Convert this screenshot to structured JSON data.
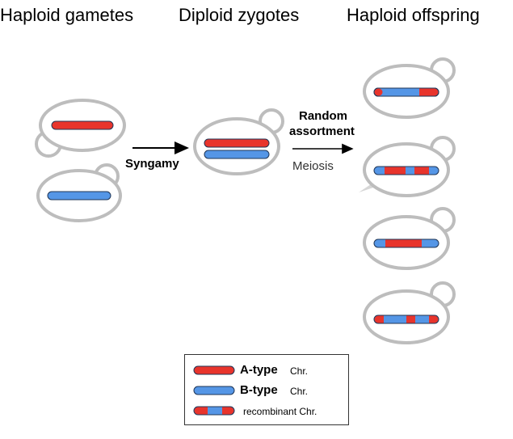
{
  "headings": {
    "gametes": "Haploid gametes",
    "zygotes": "Diploid zygotes",
    "offspring": "Haploid offspring"
  },
  "arrows": {
    "syngamy": "Syngamy",
    "random_line1": "Random",
    "random_line2": "assortment",
    "meiosis": "Meiosis"
  },
  "legend": {
    "a_type_bold": "A-type",
    "a_type_small": "Chr.",
    "b_type_bold": "B-type",
    "b_type_small": "Chr.",
    "recombinant": "recombinant Chr."
  },
  "colors": {
    "a_type": "#e8342c",
    "b_type": "#5596e6",
    "cell_outline": "#bdbdbd"
  }
}
